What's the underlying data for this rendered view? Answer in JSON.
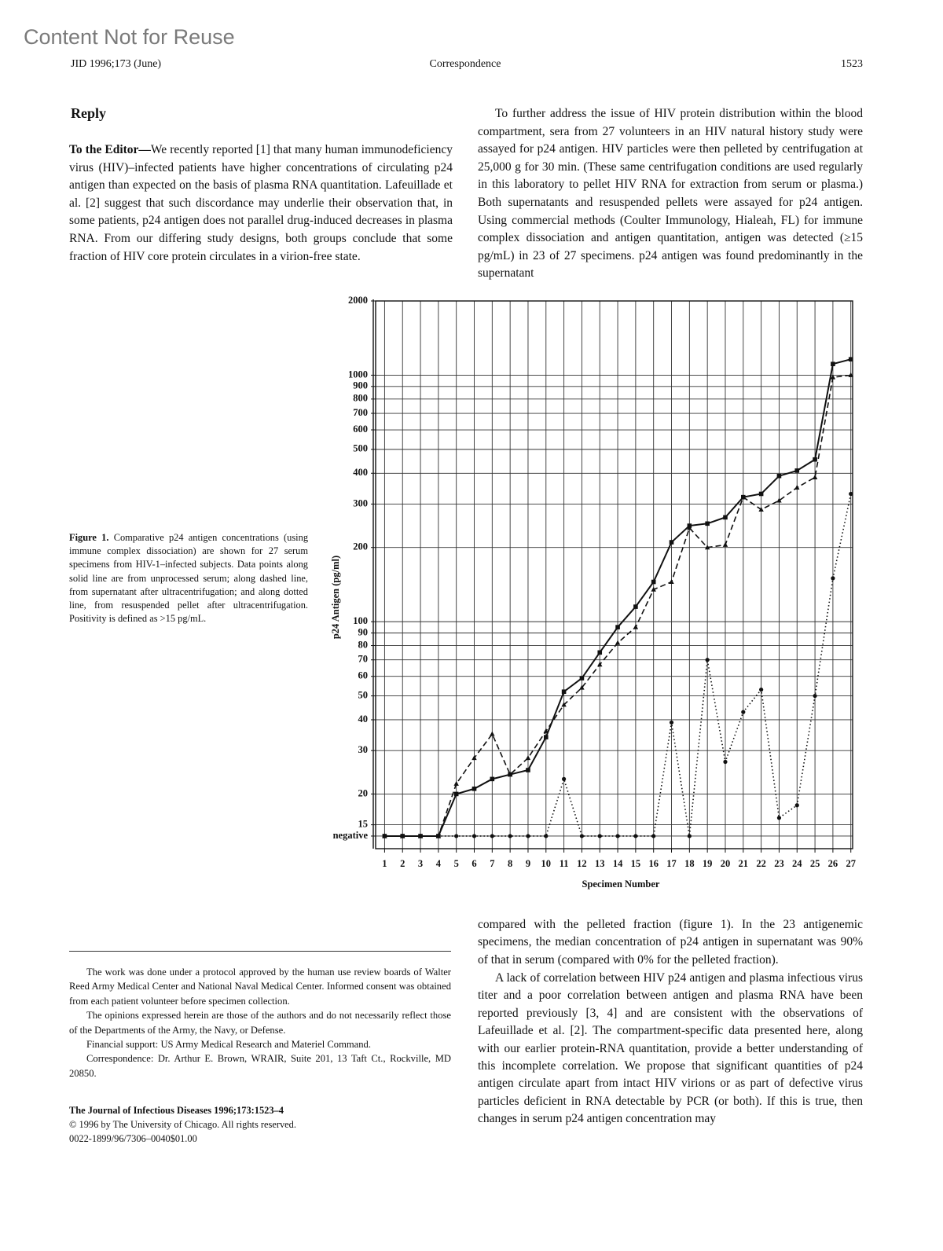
{
  "watermark": "Content Not for Reuse",
  "header": {
    "left": "JID 1996;173 (June)",
    "center": "Correspondence",
    "page": "1523"
  },
  "left_column": {
    "heading": "Reply",
    "lead": "To the Editor—",
    "text": "We recently reported [1] that many human immunodeficiency virus (HIV)–infected patients have higher concentrations of circulating p24 antigen than expected on the basis of plasma RNA quantitation. Lafeuillade et al. [2] suggest that such discordance may underlie their observation that, in some patients, p24 antigen does not parallel drug-induced decreases in plasma RNA. From our differing study designs, both groups conclude that some fraction of HIV core protein circulates in a virion-free state."
  },
  "right_column": {
    "top_paragraph": "To further address the issue of HIV protein distribution within the blood compartment, sera from 27 volunteers in an HIV natural history study were assayed for p24 antigen. HIV particles were then pelleted by centrifugation at 25,000 g for 30 min. (These same centrifugation conditions are used regularly in this laboratory to pellet HIV RNA for extraction from serum or plasma.) Both supernatants and resuspended pellets were assayed for p24 antigen. Using commercial methods (Coulter Immunology, Hialeah, FL) for immune complex dissociation and antigen quantitation, antigen was detected (≥15 pg/mL) in 23 of 27 specimens. p24 antigen was found predominantly in the supernatant",
    "bottom_paragraphs": [
      "compared with the pelleted fraction (figure 1). In the 23 antigenemic specimens, the median concentration of p24 antigen in supernatant was 90% of that in serum (compared with 0% for the pelleted fraction).",
      "A lack of correlation between HIV p24 antigen and plasma infectious virus titer and a poor correlation between antigen and plasma RNA have been reported previously [3, 4] and are consistent with the observations of Lafeuillade et al. [2]. The compartment-specific data presented here, along with our earlier protein-RNA quantitation, provide a better understanding of this incomplete correlation. We propose that significant quantities of p24 antigen circulate apart from intact HIV virions or as part of defective virus particles deficient in RNA detectable by PCR (or both). If this is true, then changes in serum p24 antigen concentration may"
    ]
  },
  "figure": {
    "label": "Figure 1.",
    "caption": "Comparative p24 antigen concentrations (using immune complex dissociation) are shown for 27 serum specimens from HIV-1–infected subjects. Data points along solid line are from unprocessed serum; along dashed line, from supernatant after ultracentrifugation; and along dotted line, from resuspended pellet after ultracentrifugation. Positivity is defined as >15 pg/mL."
  },
  "footnotes": [
    "The work was done under a protocol approved by the human use review boards of Walter Reed Army Medical Center and National Naval Medical Center. Informed consent was obtained from each patient volunteer before specimen collection.",
    "The opinions expressed herein are those of the authors and do not necessarily reflect those of the Departments of the Army, the Navy, or Defense.",
    "Financial support: US Army Medical Research and Materiel Command.",
    "Correspondence: Dr. Arthur E. Brown, WRAIR, Suite 201, 13 Taft Ct., Rockville, MD 20850."
  ],
  "journal": {
    "citation": "The Journal of Infectious Diseases    1996;173:1523–4",
    "copyright": "© 1996 by The University of Chicago. All rights reserved.",
    "code": "0022-1899/96/7306–0040$01.00"
  },
  "chart_data": {
    "type": "line",
    "y_label": "p24 Antigen (pg/ml)",
    "x_label": "Specimen Number",
    "log_y": true,
    "grid": true,
    "x": [
      1,
      2,
      3,
      4,
      5,
      6,
      7,
      8,
      9,
      10,
      11,
      12,
      13,
      14,
      15,
      16,
      17,
      18,
      19,
      20,
      21,
      22,
      23,
      24,
      25,
      26,
      27
    ],
    "xlim": [
      0.5,
      27.1
    ],
    "xticks": [
      1,
      2,
      3,
      4,
      5,
      6,
      7,
      8,
      9,
      10,
      11,
      12,
      13,
      14,
      15,
      16,
      17,
      18,
      19,
      20,
      21,
      22,
      23,
      24,
      25,
      26,
      27
    ],
    "ylim": [
      12,
      2000
    ],
    "yticks": [
      {
        "value": 13.5,
        "label": "negative"
      },
      15,
      20,
      30,
      40,
      50,
      60,
      70,
      80,
      90,
      100,
      200,
      300,
      400,
      500,
      600,
      700,
      800,
      900,
      1000,
      2000
    ],
    "series": [
      {
        "color": "#111111",
        "line_style": "solid",
        "marker": "square",
        "values": [
          13.5,
          13.5,
          13.5,
          13.5,
          20,
          21,
          23,
          24,
          25,
          34,
          52,
          59,
          75,
          95,
          115,
          145,
          210,
          245,
          250,
          265,
          320,
          330,
          390,
          410,
          455,
          1110,
          1160
        ]
      },
      {
        "color": "#111111",
        "line_style": "dashed",
        "marker": "triangle",
        "values": [
          13.5,
          13.5,
          13.5,
          13.5,
          22,
          28,
          35,
          24,
          28,
          36,
          46,
          54,
          67,
          82,
          95,
          135,
          145,
          240,
          200,
          205,
          320,
          285,
          310,
          350,
          385,
          980,
          1000
        ]
      },
      {
        "color": "#111111",
        "line_style": "dotted",
        "marker": "dot",
        "values": [
          13.5,
          13.5,
          13.5,
          13.5,
          13.5,
          13.5,
          13.5,
          13.5,
          13.5,
          13.5,
          23,
          13.5,
          13.5,
          13.5,
          13.5,
          13.5,
          39,
          13.5,
          70,
          27,
          43,
          53,
          16,
          18,
          50,
          150,
          330
        ]
      }
    ]
  }
}
